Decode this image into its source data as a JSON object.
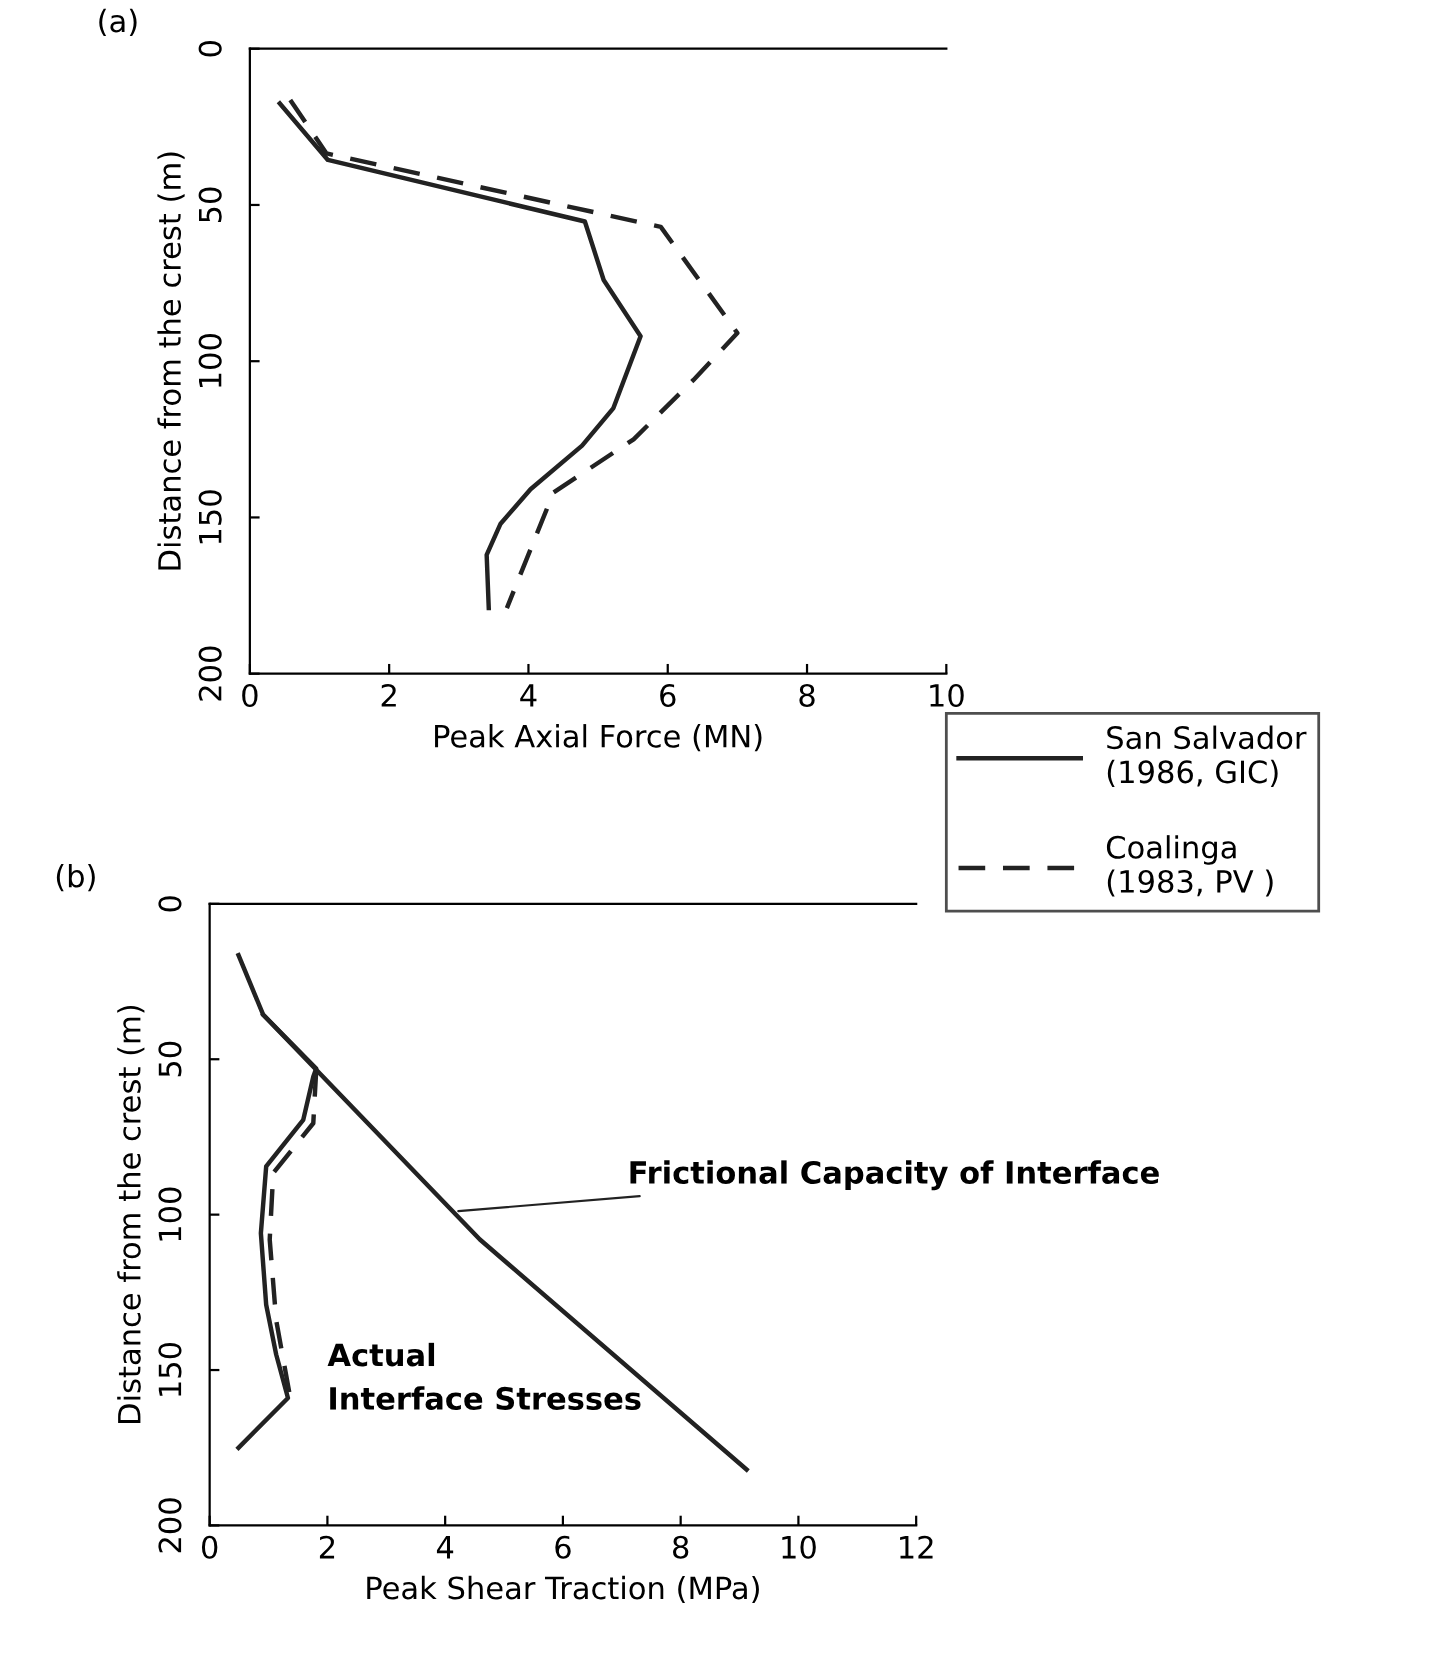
{
  "chart_data": [
    {
      "type": "line",
      "title": "(a)",
      "xlabel": "Peak Axial Force (MN)",
      "ylabel": "Distance from the crest (m)",
      "xlim": [
        0,
        10
      ],
      "xticks": [
        0,
        2,
        4,
        6,
        8,
        10
      ],
      "ylim": [
        200,
        0
      ],
      "yticks": [
        0,
        50,
        100,
        150,
        200
      ],
      "legend": "bottom right",
      "marker": "none",
      "series": [
        {
          "name": "San Salvador\n(1986, GIC)",
          "color": "#222222",
          "line_style": "solid",
          "x": [
            0.43,
            1.12,
            4.81,
            5.08,
            5.61,
            5.22,
            4.77,
            4.03,
            3.6,
            3.4,
            3.43
          ],
          "values": [
            17.5,
            35.6,
            55.3,
            74,
            92,
            115,
            127,
            141,
            152,
            162,
            179
          ]
        },
        {
          "name": "Coalinga\n(1983, PV )",
          "color": "#222222",
          "line_style": "dashed",
          "x": [
            0.58,
            1.1,
            5.9,
            7.0,
            6.37,
            5.51,
            4.36,
            3.69
          ],
          "values": [
            16.4,
            33.5,
            57,
            91,
            106,
            125,
            142,
            179
          ]
        }
      ]
    },
    {
      "type": "line",
      "title": "(b)",
      "xlabel": "Peak Shear Traction (MPa)",
      "ylabel": "Distance from the crest (m)",
      "xlim": [
        0,
        12
      ],
      "xticks": [
        0,
        2,
        4,
        6,
        8,
        10,
        12
      ],
      "ylim": [
        200,
        0
      ],
      "yticks": [
        0,
        50,
        100,
        150,
        200
      ],
      "marker": "none",
      "annotations": [
        {
          "text": "Frictional Capacity of Interface",
          "x": 4.13,
          "y": 99
        },
        "Actual",
        "Interface Stresses"
      ],
      "series": [
        {
          "color": "#222222",
          "line_style": "solid",
          "x": [
            0.49,
            0.91,
            1.81,
            1.76,
            1.59,
            0.96,
            0.87,
            0.96,
            1.13,
            1.33,
            0.49
          ],
          "values": [
            16.5,
            35.7,
            53,
            55.6,
            69.5,
            84.5,
            106,
            129,
            145,
            159,
            175
          ]
        },
        {
          "color": "#222222",
          "line_style": "dashed",
          "x": [
            1.81,
            1.76,
            1.08,
            1.02,
            1.13,
            1.36
          ],
          "values": [
            53.5,
            70.6,
            86.6,
            108,
            134,
            158
          ]
        },
        {
          "color": "#222222",
          "line_style": "solid",
          "x": [
            0.91,
            4.59,
            9.12
          ],
          "values": [
            35.7,
            108,
            182
          ]
        }
      ]
    }
  ]
}
